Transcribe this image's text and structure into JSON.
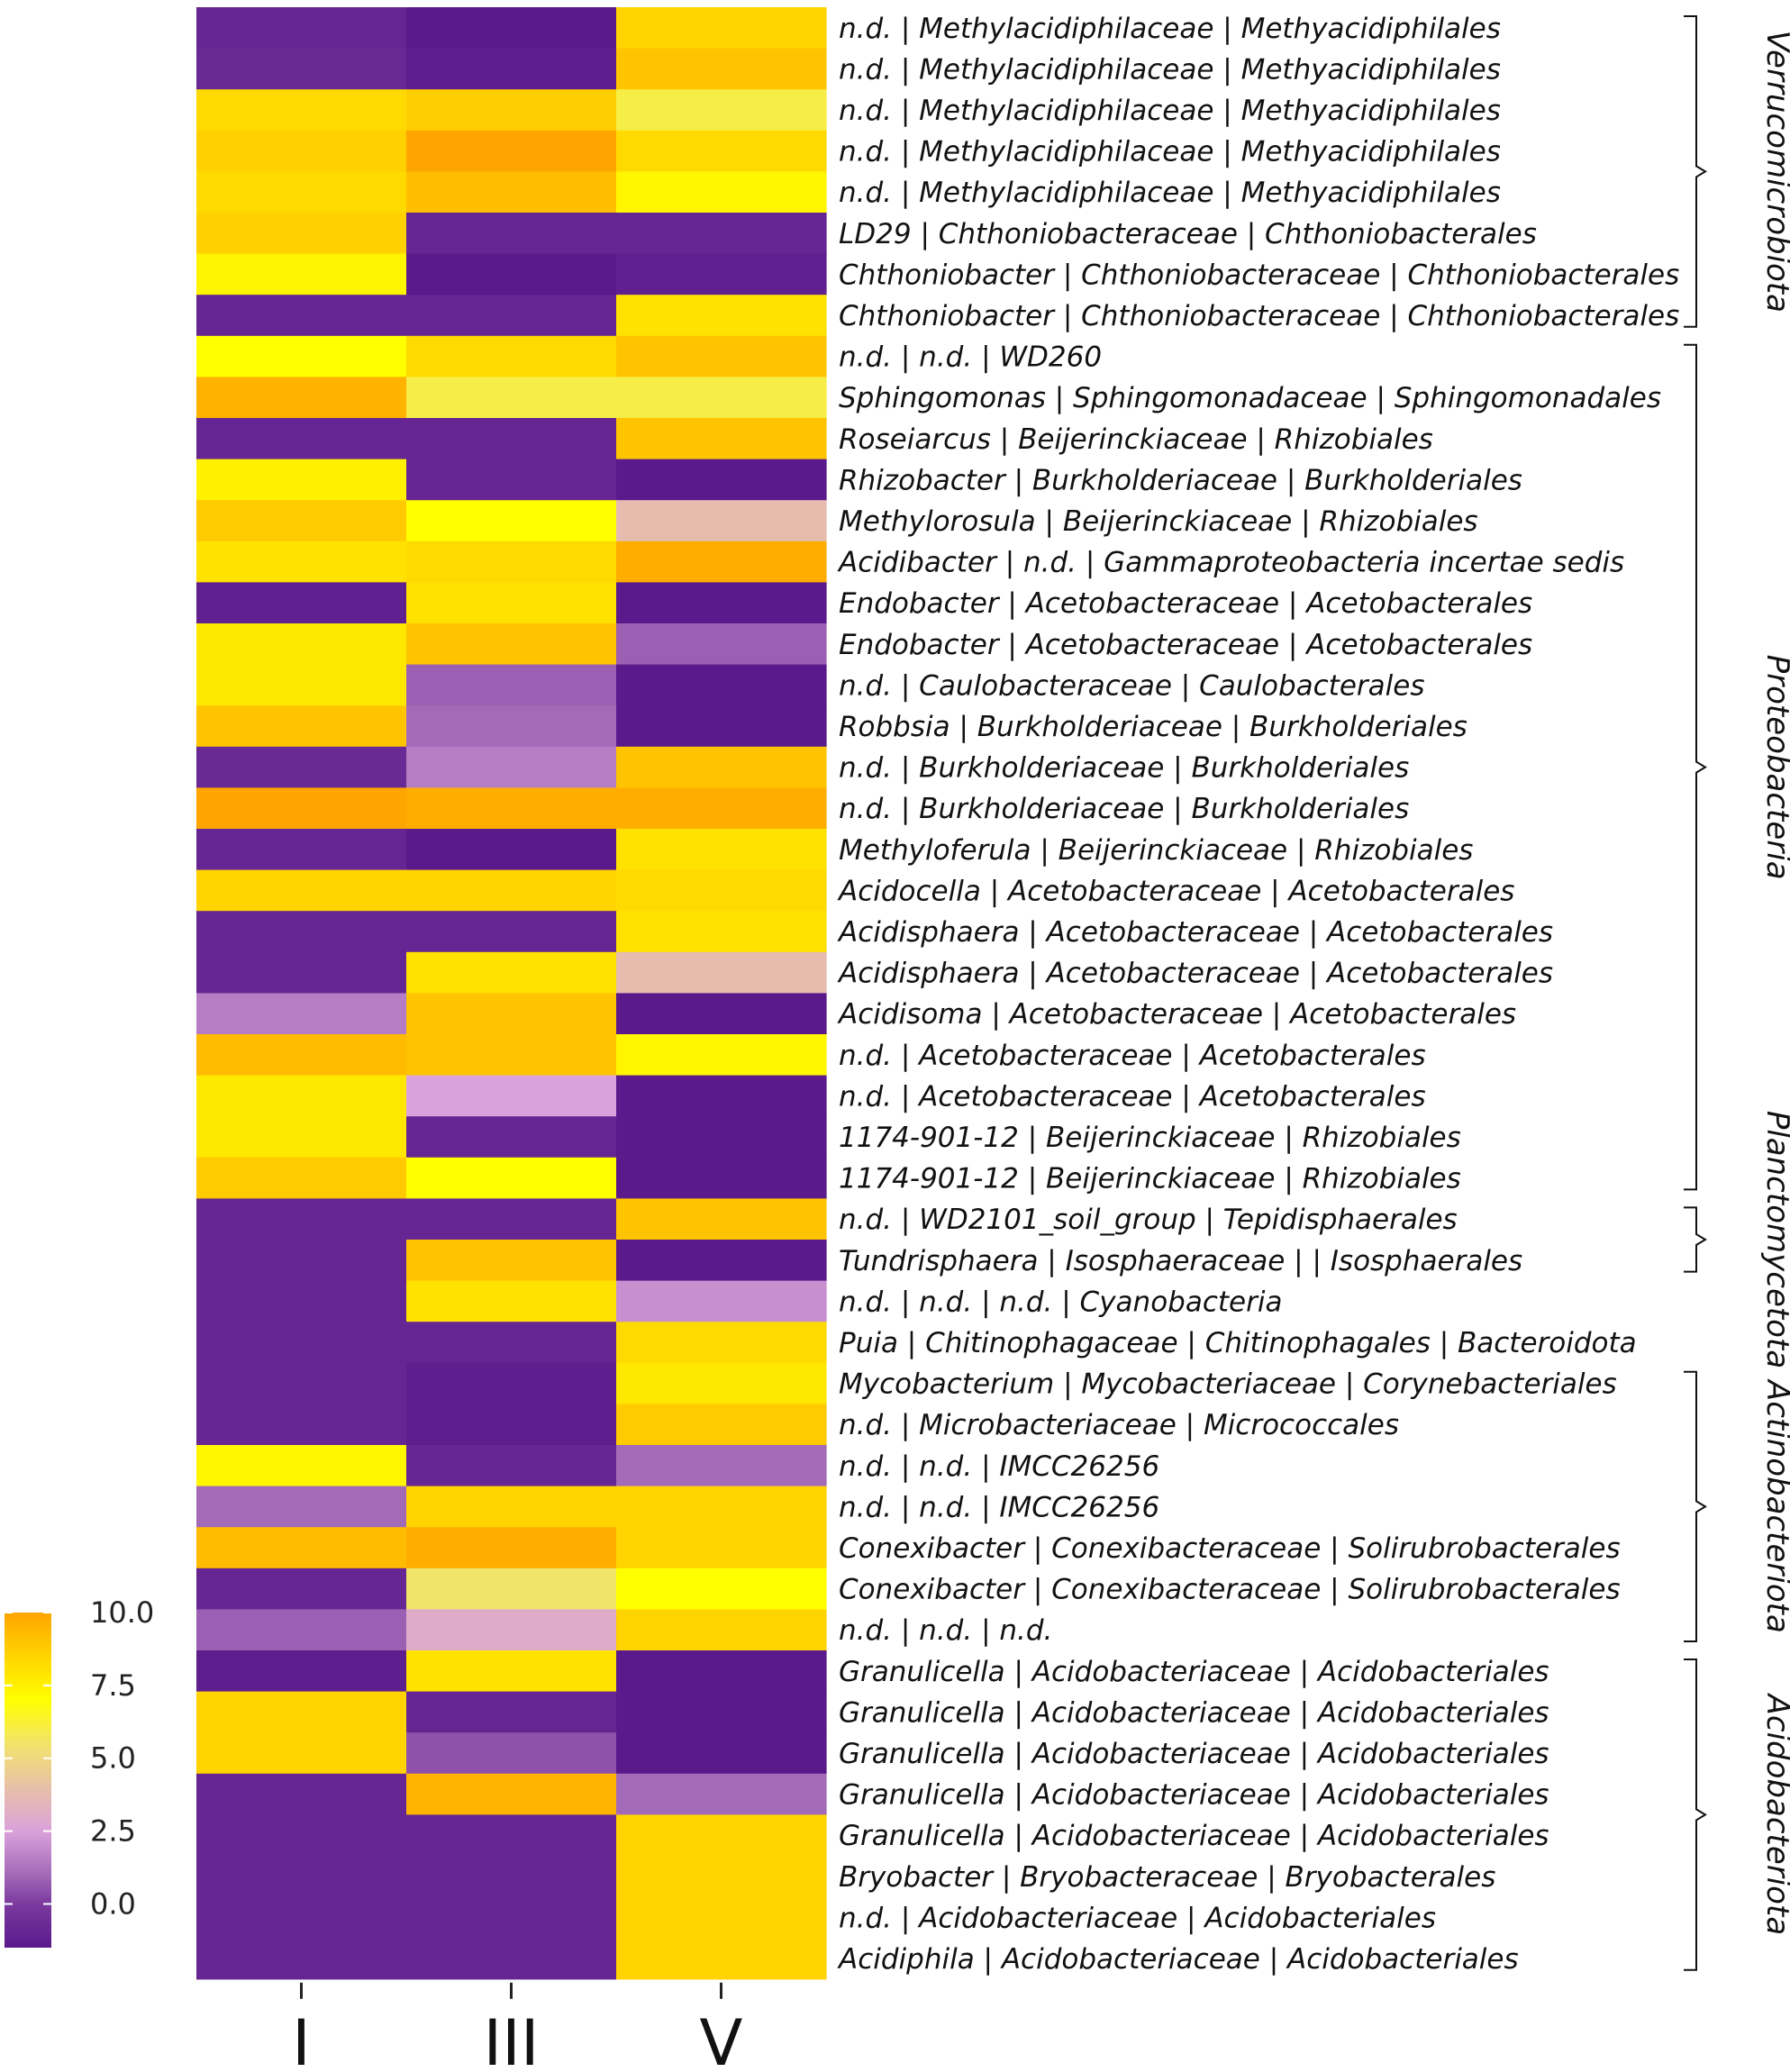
{
  "chart_data": {
    "type": "heatmap",
    "columns": [
      "I",
      "III",
      "V"
    ],
    "rows": [
      {
        "label": "n.d. | Methylacidiphilaceae | Methyacidiphilales",
        "values": [
          -1.0,
          -1.5,
          8.5
        ]
      },
      {
        "label": "n.d. | Methylacidiphilaceae | Methyacidiphilales",
        "values": [
          -0.8,
          -1.3,
          9.0
        ]
      },
      {
        "label": "n.d. | Methylacidiphilaceae | Methyacidiphilales",
        "values": [
          8.3,
          8.7,
          6.0
        ]
      },
      {
        "label": "n.d. | Methylacidiphilaceae | Methyacidiphilales",
        "values": [
          8.6,
          10.0,
          8.3
        ]
      },
      {
        "label": "n.d. | Methylacidiphilaceae | Methyacidiphilales",
        "values": [
          8.3,
          9.2,
          7.3
        ]
      },
      {
        "label": "LD29 | Chthoniobacteraceae | Chthoniobacterales",
        "values": [
          8.6,
          -1.0,
          -1.0
        ]
      },
      {
        "label": "Chthoniobacter | Chthoniobacteraceae | Chthoniobacterales",
        "values": [
          7.4,
          -1.5,
          -1.2
        ]
      },
      {
        "label": "Chthoniobacter | Chthoniobacteraceae | Chthoniobacterales",
        "values": [
          -1.0,
          -1.0,
          8.0
        ]
      },
      {
        "label": "n.d. | n.d. | WD260",
        "values": [
          7.0,
          8.3,
          9.0
        ]
      },
      {
        "label": "Sphingomonas | Sphingomonadaceae | Sphingomonadales",
        "values": [
          9.6,
          6.0,
          6.0
        ]
      },
      {
        "label": "Roseiarcus | Beijerinckiaceae | Rhizobiales",
        "values": [
          -1.0,
          -1.0,
          9.0
        ]
      },
      {
        "label": "Rhizobacter | Burkholderiaceae | Burkholderiales",
        "values": [
          7.5,
          -1.0,
          -1.5
        ]
      },
      {
        "label": "Methylorosula | Beijerinckiaceae | Rhizobiales",
        "values": [
          8.8,
          7.0,
          3.8
        ]
      },
      {
        "label": "Acidibacter | n.d. | Gammaproteobacteria incertae sedis",
        "values": [
          8.0,
          8.3,
          9.7
        ]
      },
      {
        "label": "Endobacter | Acetobacteraceae | Acetobacterales",
        "values": [
          -1.2,
          8.0,
          -1.5
        ]
      },
      {
        "label": "Endobacter | Acetobacteraceae | Acetobacterales",
        "values": [
          7.8,
          9.0,
          0.8
        ]
      },
      {
        "label": "n.d. | Caulobacteraceae | Caulobacterales",
        "values": [
          7.8,
          0.8,
          -1.5
        ]
      },
      {
        "label": "Robbsia | Burkholderiaceae | Burkholderiales",
        "values": [
          9.0,
          1.0,
          -1.5
        ]
      },
      {
        "label": "n.d. | Burkholderiaceae | Burkholderiales",
        "values": [
          -0.8,
          1.5,
          9.0
        ]
      },
      {
        "label": "n.d. | Burkholderiaceae | Burkholderiales",
        "values": [
          10.0,
          9.7,
          9.7
        ]
      },
      {
        "label": "Methyloferula | Beijerinckiaceae | Rhizobiales",
        "values": [
          -1.0,
          -1.5,
          8.0
        ]
      },
      {
        "label": "Acidocella | Acetobacteraceae | Acetobacterales",
        "values": [
          8.5,
          8.5,
          8.3
        ]
      },
      {
        "label": "Acidisphaera | Acetobacteraceae | Acetobacterales",
        "values": [
          -1.0,
          -1.0,
          8.0
        ]
      },
      {
        "label": "Acidisphaera | Acetobacteraceae | Acetobacterales",
        "values": [
          -1.0,
          8.0,
          3.8
        ]
      },
      {
        "label": "Acidisoma | Acetobacteraceae | Acetobacterales",
        "values": [
          1.5,
          9.0,
          -1.5
        ]
      },
      {
        "label": "n.d. | Acetobacteraceae | Acetobacterales",
        "values": [
          9.3,
          9.0,
          7.3
        ]
      },
      {
        "label": "n.d. | Acetobacteraceae | Acetobacterales",
        "values": [
          7.8,
          2.5,
          -1.5
        ]
      },
      {
        "label": "1174-901-12 | Beijerinckiaceae | Rhizobiales",
        "values": [
          7.8,
          -1.0,
          -1.5
        ]
      },
      {
        "label": "1174-901-12 | Beijerinckiaceae | Rhizobiales",
        "values": [
          8.8,
          7.0,
          -1.5
        ]
      },
      {
        "label": "n.d. | WD2101_soil_group | Tepidisphaerales",
        "values": [
          -1.0,
          -1.0,
          9.0
        ]
      },
      {
        "label": "Tundrisphaera | Isosphaeraceae | | Isosphaerales",
        "values": [
          -1.0,
          9.0,
          -1.5
        ]
      },
      {
        "label": "n.d. | n.d. | n.d. | Cyanobacteria",
        "values": [
          -1.0,
          8.0,
          2.0
        ]
      },
      {
        "label": "Puia | Chitinophagaceae | Chitinophagales | Bacteroidota",
        "values": [
          -1.0,
          -1.0,
          8.3
        ]
      },
      {
        "label": "Mycobacterium | Mycobacteriaceae | Corynebacteriales",
        "values": [
          -1.0,
          -1.3,
          7.8
        ]
      },
      {
        "label": "n.d. | Microbacteriaceae | Micrococcales",
        "values": [
          -1.0,
          -1.3,
          8.8
        ]
      },
      {
        "label": "n.d. | n.d. | IMCC26256",
        "values": [
          7.3,
          -1.0,
          1.0
        ]
      },
      {
        "label": "n.d. | n.d. | IMCC26256",
        "values": [
          1.0,
          8.5,
          8.5
        ]
      },
      {
        "label": "Conexibacter | Conexibacteraceae | Solirubrobacterales",
        "values": [
          9.3,
          9.7,
          8.5
        ]
      },
      {
        "label": "Conexibacter | Conexibacteraceae | Solirubrobacterales",
        "values": [
          -1.0,
          5.5,
          7.0
        ]
      },
      {
        "label": "n.d. | n.d. | n.d.",
        "values": [
          0.8,
          3.0,
          8.5
        ]
      },
      {
        "label": "Granulicella | Acidobacteriaceae | Acidobacteriales",
        "values": [
          -1.3,
          8.0,
          -1.5
        ]
      },
      {
        "label": "Granulicella | Acidobacteriaceae | Acidobacteriales",
        "values": [
          8.5,
          -1.0,
          -1.5
        ]
      },
      {
        "label": "Granulicella | Acidobacteriaceae | Acidobacteriales",
        "values": [
          8.5,
          0.5,
          -1.5
        ]
      },
      {
        "label": "Granulicella | Acidobacteriaceae | Acidobacteriales",
        "values": [
          -1.0,
          9.5,
          1.0
        ]
      },
      {
        "label": "Granulicella | Acidobacteriaceae | Acidobacteriales",
        "values": [
          -1.0,
          -1.0,
          8.5
        ]
      },
      {
        "label": "Bryobacter | Bryobacteraceae | Bryobacterales",
        "values": [
          -1.0,
          -1.0,
          8.5
        ]
      },
      {
        "label": "n.d. | Acidobacteriaceae | Acidobacteriales",
        "values": [
          -1.0,
          -1.0,
          8.5
        ]
      },
      {
        "label": "Acidiphila | Acidobacteriaceae | Acidobacteriales",
        "values": [
          -1.0,
          -1.0,
          8.5
        ]
      }
    ],
    "phyla": [
      {
        "name": "Verrucomicrobiota",
        "row_start": 0,
        "row_end": 7
      },
      {
        "name": "Proteobacteria",
        "row_start": 8,
        "row_end": 28
      },
      {
        "name": "Planctomycetota",
        "row_start": 29,
        "row_end": 30
      },
      {
        "name": "Actinobacteriota",
        "row_start": 33,
        "row_end": 39
      },
      {
        "name": "Acidobacteriota",
        "row_start": 40,
        "row_end": 47
      }
    ],
    "legend": {
      "ticks": [
        "10.0",
        "7.5",
        "5.0",
        "2.5",
        "0.0"
      ],
      "tick_values": [
        10.0,
        7.5,
        5.0,
        2.5,
        0.0
      ],
      "range": [
        -1.5,
        10.0
      ],
      "position": "bottom-left"
    },
    "color_scale": [
      {
        "v": -1.5,
        "color": "#5a1a8c"
      },
      {
        "v": 0.0,
        "color": "#7a3a9e"
      },
      {
        "v": 1.0,
        "color": "#a36ab8"
      },
      {
        "v": 2.5,
        "color": "#d9a2da"
      },
      {
        "v": 4.0,
        "color": "#e8c0a8"
      },
      {
        "v": 5.5,
        "color": "#f2e46a"
      },
      {
        "v": 7.0,
        "color": "#ffff00"
      },
      {
        "v": 8.5,
        "color": "#ffd400"
      },
      {
        "v": 10.0,
        "color": "#ffa500"
      }
    ]
  }
}
